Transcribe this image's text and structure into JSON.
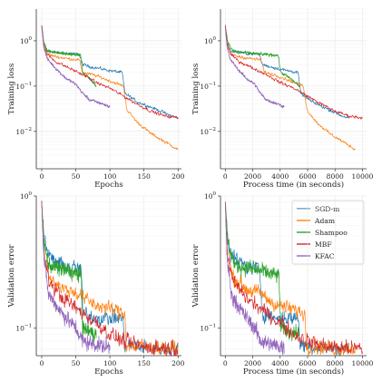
{
  "chart_data": [
    {
      "type": "line",
      "title": "",
      "xlabel": "Epochs",
      "ylabel": "Training loss",
      "yscale": "log",
      "ylim": [
        0.0015,
        5
      ],
      "xlim": [
        -8,
        205
      ],
      "xticks": [
        0,
        50,
        100,
        150,
        200
      ],
      "yticks": [
        {
          "value": 0.01,
          "label": "10^-2"
        },
        {
          "value": 0.1,
          "label": "10^-1"
        },
        {
          "value": 1,
          "label": "10^0"
        }
      ],
      "grid": true,
      "series": [
        {
          "name": "SGD-m",
          "x": [
            0,
            3,
            8,
            20,
            40,
            55,
            60,
            70,
            100,
            118,
            122,
            140,
            170,
            190,
            200
          ],
          "y": [
            2.2,
            0.9,
            0.6,
            0.55,
            0.52,
            0.5,
            0.3,
            0.27,
            0.22,
            0.2,
            0.07,
            0.045,
            0.03,
            0.022,
            0.02
          ]
        },
        {
          "name": "Adam",
          "x": [
            0,
            3,
            8,
            20,
            40,
            55,
            60,
            80,
            100,
            120,
            125,
            140,
            160,
            180,
            200
          ],
          "y": [
            2.0,
            0.8,
            0.5,
            0.45,
            0.4,
            0.38,
            0.2,
            0.17,
            0.13,
            0.1,
            0.03,
            0.016,
            0.009,
            0.006,
            0.004
          ]
        },
        {
          "name": "Shampoo",
          "x": [
            0,
            3,
            8,
            20,
            40,
            57,
            60,
            70,
            80
          ],
          "y": [
            2.1,
            0.9,
            0.6,
            0.55,
            0.5,
            0.48,
            0.2,
            0.15,
            0.1
          ]
        },
        {
          "name": "MBF",
          "x": [
            0,
            3,
            8,
            20,
            40,
            60,
            80,
            100,
            120,
            140,
            160,
            180,
            200
          ],
          "y": [
            2.2,
            0.8,
            0.5,
            0.35,
            0.25,
            0.18,
            0.12,
            0.09,
            0.06,
            0.04,
            0.028,
            0.022,
            0.02
          ]
        },
        {
          "name": "KFAC",
          "x": [
            0,
            3,
            8,
            20,
            35,
            50,
            60,
            70,
            80,
            90,
            100
          ],
          "y": [
            2.0,
            0.7,
            0.4,
            0.25,
            0.15,
            0.11,
            0.07,
            0.05,
            0.045,
            0.04,
            0.035
          ]
        }
      ]
    },
    {
      "type": "line",
      "title": "",
      "xlabel": "Process time (in seconds)",
      "ylabel": "Training loss",
      "yscale": "log",
      "ylim": [
        0.0015,
        5
      ],
      "xlim": [
        -350,
        10300
      ],
      "xticks": [
        0,
        2000,
        4000,
        6000,
        8000,
        10000
      ],
      "yticks": [
        {
          "value": 0.01,
          "label": "10^-2"
        },
        {
          "value": 0.1,
          "label": "10^-1"
        },
        {
          "value": 1,
          "label": "10^0"
        }
      ],
      "grid": true,
      "series": [
        {
          "name": "SGD-m",
          "x": [
            0,
            130,
            350,
            900,
            1800,
            2500,
            2700,
            3200,
            4500,
            5300,
            5500,
            6300,
            7600,
            8500,
            9000
          ],
          "y": [
            2.2,
            0.9,
            0.6,
            0.55,
            0.52,
            0.5,
            0.3,
            0.27,
            0.22,
            0.2,
            0.07,
            0.045,
            0.03,
            0.022,
            0.02
          ]
        },
        {
          "name": "Adam",
          "x": [
            0,
            140,
            380,
            950,
            1900,
            2600,
            2850,
            3800,
            4750,
            5700,
            5950,
            6650,
            7600,
            8550,
            9500
          ],
          "y": [
            2.0,
            0.8,
            0.5,
            0.45,
            0.4,
            0.38,
            0.2,
            0.17,
            0.13,
            0.1,
            0.03,
            0.016,
            0.009,
            0.006,
            0.004
          ]
        },
        {
          "name": "Shampoo",
          "x": [
            0,
            200,
            550,
            1350,
            2700,
            3850,
            4050,
            4700,
            5400
          ],
          "y": [
            2.1,
            0.9,
            0.6,
            0.55,
            0.5,
            0.48,
            0.2,
            0.15,
            0.1
          ]
        },
        {
          "name": "MBF",
          "x": [
            0,
            150,
            400,
            1000,
            2000,
            3000,
            4000,
            5000,
            6000,
            7000,
            8000,
            9000,
            10000
          ],
          "y": [
            2.2,
            0.8,
            0.5,
            0.35,
            0.25,
            0.18,
            0.12,
            0.09,
            0.06,
            0.04,
            0.028,
            0.022,
            0.02
          ]
        },
        {
          "name": "KFAC",
          "x": [
            0,
            130,
            340,
            850,
            1500,
            2150,
            2550,
            3000,
            3400,
            3850,
            4300
          ],
          "y": [
            2.0,
            0.7,
            0.4,
            0.25,
            0.15,
            0.11,
            0.07,
            0.05,
            0.045,
            0.04,
            0.035
          ]
        }
      ]
    },
    {
      "type": "line",
      "title": "",
      "xlabel": "Epochs",
      "ylabel": "Validation error",
      "yscale": "log",
      "ylim": [
        0.062,
        1.0
      ],
      "xlim": [
        -8,
        205
      ],
      "xticks": [
        0,
        50,
        100,
        150,
        200
      ],
      "yticks": [
        {
          "value": 0.1,
          "label": "10^-1"
        },
        {
          "value": 1,
          "label": "10^0"
        }
      ],
      "grid": true,
      "series": [
        {
          "name": "SGD-m",
          "x": [
            0,
            3,
            10,
            30,
            58,
            60,
            80,
            100,
            119,
            121,
            150,
            200
          ],
          "y": [
            0.9,
            0.5,
            0.35,
            0.3,
            0.28,
            0.13,
            0.12,
            0.12,
            0.12,
            0.075,
            0.072,
            0.07
          ]
        },
        {
          "name": "Adam",
          "x": [
            0,
            3,
            10,
            30,
            58,
            60,
            80,
            100,
            122,
            124,
            150,
            200
          ],
          "y": [
            0.9,
            0.4,
            0.25,
            0.2,
            0.18,
            0.17,
            0.15,
            0.14,
            0.13,
            0.075,
            0.072,
            0.07
          ]
        },
        {
          "name": "Shampoo",
          "x": [
            0,
            3,
            10,
            30,
            58,
            60,
            80
          ],
          "y": [
            0.9,
            0.45,
            0.3,
            0.28,
            0.25,
            0.1,
            0.09
          ]
        },
        {
          "name": "MBF",
          "x": [
            0,
            3,
            10,
            30,
            60,
            80,
            100,
            120,
            150,
            200
          ],
          "y": [
            0.9,
            0.35,
            0.23,
            0.17,
            0.13,
            0.11,
            0.09,
            0.08,
            0.072,
            0.07
          ]
        },
        {
          "name": "KFAC",
          "x": [
            0,
            3,
            10,
            30,
            50,
            60,
            80,
            100
          ],
          "y": [
            0.9,
            0.35,
            0.18,
            0.13,
            0.1,
            0.08,
            0.075,
            0.072
          ]
        }
      ],
      "legend": {
        "position": "top-right",
        "entries": [
          "SGD-m",
          "Adam",
          "Shampoo",
          "MBF",
          "KFAC"
        ]
      }
    },
    {
      "type": "line",
      "title": "",
      "xlabel": "Process time (in seconds)",
      "ylabel": "Validation error",
      "yscale": "log",
      "ylim": [
        0.062,
        1.0
      ],
      "xlim": [
        -350,
        10300
      ],
      "xticks": [
        0,
        2000,
        4000,
        6000,
        8000,
        10000
      ],
      "yticks": [
        {
          "value": 0.1,
          "label": "10^-1"
        },
        {
          "value": 1,
          "label": "10^0"
        }
      ],
      "grid": true,
      "series": [
        {
          "name": "SGD-m",
          "x": [
            0,
            130,
            450,
            1350,
            2500,
            2700,
            3600,
            4500,
            5350,
            5450,
            6750,
            9000
          ],
          "y": [
            0.9,
            0.5,
            0.35,
            0.3,
            0.28,
            0.13,
            0.12,
            0.12,
            0.12,
            0.075,
            0.072,
            0.07
          ]
        },
        {
          "name": "Adam",
          "x": [
            0,
            140,
            480,
            1450,
            2800,
            2850,
            3800,
            4750,
            5800,
            5900,
            7100,
            9500
          ],
          "y": [
            0.9,
            0.4,
            0.25,
            0.2,
            0.18,
            0.17,
            0.15,
            0.14,
            0.13,
            0.075,
            0.072,
            0.07
          ]
        },
        {
          "name": "Shampoo",
          "x": [
            0,
            200,
            680,
            2000,
            3900,
            4050,
            5400
          ],
          "y": [
            0.9,
            0.45,
            0.3,
            0.28,
            0.25,
            0.1,
            0.09
          ]
        },
        {
          "name": "MBF",
          "x": [
            0,
            150,
            500,
            1500,
            3000,
            4000,
            5000,
            6000,
            7500,
            10000
          ],
          "y": [
            0.9,
            0.35,
            0.23,
            0.17,
            0.13,
            0.11,
            0.09,
            0.08,
            0.072,
            0.07
          ]
        },
        {
          "name": "KFAC",
          "x": [
            0,
            130,
            430,
            1300,
            2150,
            2600,
            3450,
            4300
          ],
          "y": [
            0.9,
            0.35,
            0.18,
            0.13,
            0.1,
            0.08,
            0.075,
            0.072
          ]
        }
      ]
    }
  ],
  "colors": {
    "SGD-m": "#1f77b4",
    "Adam": "#ff7f0e",
    "Shampoo": "#2ca02c",
    "MBF": "#d62728",
    "KFAC": "#9467bd"
  }
}
